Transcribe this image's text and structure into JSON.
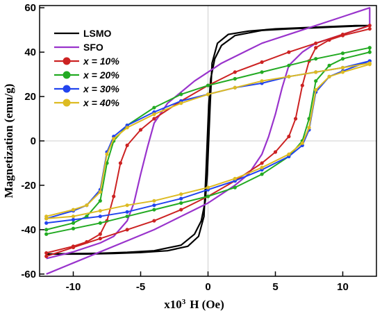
{
  "chart_data": {
    "type": "line",
    "title": "",
    "xlabel_prefix": "x10",
    "xlabel_exp": "3",
    "xlabel_main": "H (Oe)",
    "ylabel": "Magnetization (emu/g)",
    "xlim": [
      -12.5,
      12.5
    ],
    "ylim": [
      -61,
      61
    ],
    "x_ticks": [
      -10,
      -5,
      0,
      5,
      10
    ],
    "y_ticks": [
      -60,
      -40,
      -20,
      0,
      20,
      40,
      60
    ],
    "legend_position": "top-left",
    "series": [
      {
        "name": "LSMO",
        "italic": false,
        "color": "#000000",
        "marker": false,
        "x": [
          -12,
          -10,
          -8,
          -6,
          -4,
          -2,
          -1,
          -0.5,
          -0.2,
          -0.05,
          0.15,
          0.3,
          0.7,
          1.5,
          3,
          5,
          7,
          9,
          11,
          12,
          12,
          10,
          8,
          6,
          4,
          2,
          1,
          0.5,
          0.2,
          0.05,
          -0.15,
          -0.3,
          -0.7,
          -1.5,
          -3,
          -5,
          -7,
          -9,
          -11,
          -12
        ],
        "y": [
          -51,
          -50.8,
          -50.6,
          -50.2,
          -49.5,
          -47,
          -42,
          -36,
          -27,
          -15,
          15,
          35,
          44,
          48,
          49.5,
          50.5,
          51,
          51.5,
          52,
          52,
          52,
          51.5,
          51,
          50.5,
          49.8,
          47.5,
          43,
          37,
          28,
          16,
          -14,
          -34,
          -43,
          -47.5,
          -49.5,
          -50.3,
          -50.7,
          -51,
          -51,
          -51
        ]
      },
      {
        "name": "SFO",
        "italic": false,
        "color": "#9933cc",
        "marker": false,
        "x": [
          -12,
          -10,
          -8,
          -6,
          -4,
          -3,
          -2,
          -1,
          0,
          1,
          2,
          3,
          4,
          4.5,
          5,
          5.5,
          6,
          7,
          8,
          10,
          12,
          12,
          10,
          8,
          6,
          4,
          3,
          2,
          1,
          0,
          -1,
          -2,
          -3,
          -4,
          -4.5,
          -5,
          -5.5,
          -6,
          -7,
          -8,
          -10,
          -12
        ],
        "y": [
          -60,
          -55,
          -50,
          -45,
          -40,
          -37,
          -34,
          -31,
          -28,
          -24,
          -20,
          -15,
          -6,
          2,
          12,
          24,
          34,
          40,
          44,
          48,
          52,
          60,
          56,
          52,
          48,
          44,
          41,
          38,
          35,
          31,
          27,
          22,
          17,
          8,
          -3,
          -15,
          -28,
          -36,
          -43,
          -46,
          -50,
          -53
        ]
      },
      {
        "name": "x = 10%",
        "italic": true,
        "color": "#cc2222",
        "marker": true,
        "x": [
          -12,
          -10,
          -8,
          -6,
          -4,
          -2,
          0,
          2,
          4,
          5,
          6,
          6.5,
          7,
          7.5,
          8,
          9,
          10,
          12,
          12,
          10,
          8,
          6,
          4,
          2,
          0,
          -2,
          -4,
          -5,
          -6,
          -6.5,
          -7,
          -7.5,
          -8,
          -9,
          -10,
          -12
        ],
        "y": [
          -52,
          -48,
          -44,
          -40,
          -36,
          -31,
          -25,
          -18,
          -10,
          -5,
          2,
          10,
          25,
          36,
          42,
          45.5,
          47.5,
          50.5,
          52,
          48,
          44,
          40,
          35.5,
          31,
          25,
          18,
          10,
          5,
          -2,
          -10,
          -25,
          -36,
          -42,
          -45.5,
          -47.5,
          -50.5
        ]
      },
      {
        "name": "x = 20%",
        "italic": true,
        "color": "#22aa22",
        "marker": true,
        "x": [
          -12,
          -10,
          -8,
          -6,
          -4,
          -2,
          0,
          2,
          4,
          6,
          7,
          7.5,
          8,
          9,
          10,
          12,
          12,
          10,
          8,
          6,
          4,
          2,
          0,
          -2,
          -4,
          -6,
          -7,
          -7.5,
          -8,
          -9,
          -10,
          -12
        ],
        "y": [
          -42,
          -39.5,
          -37,
          -34,
          -31,
          -28,
          -25,
          -21,
          -15,
          -7,
          0,
          10,
          27,
          34,
          37,
          40,
          42,
          39.5,
          37,
          34,
          31,
          28,
          25,
          21,
          15,
          7,
          0,
          -10,
          -27,
          -34,
          -37,
          -40
        ]
      },
      {
        "name": "x = 30%",
        "italic": true,
        "color": "#2244ee",
        "marker": true,
        "x": [
          -12,
          -10,
          -8,
          -6,
          -4,
          -2,
          0,
          2,
          4,
          6,
          7,
          7.5,
          8,
          9,
          10,
          12,
          12,
          10,
          8,
          6,
          4,
          2,
          0,
          -2,
          -4,
          -6,
          -7,
          -7.5,
          -8,
          -9,
          -10,
          -12
        ],
        "y": [
          -37,
          -35.5,
          -34,
          -32,
          -29,
          -26,
          -22,
          -18,
          -13,
          -7,
          -2,
          5,
          22,
          29,
          31.5,
          36,
          36,
          33,
          31,
          29,
          26,
          24,
          21,
          18,
          13,
          7,
          2,
          -5,
          -22,
          -29,
          -31.5,
          -35
        ]
      },
      {
        "name": "x = 40%",
        "italic": true,
        "color": "#ddbb22",
        "marker": true,
        "x": [
          -12,
          -10,
          -8,
          -6,
          -4,
          -2,
          0,
          2,
          4,
          6,
          7,
          7.5,
          8,
          9,
          10,
          12,
          12,
          10,
          8,
          6,
          4,
          2,
          0,
          -2,
          -4,
          -6,
          -7,
          -7.5,
          -8,
          -9,
          -10,
          -12
        ],
        "y": [
          -35,
          -34,
          -31.5,
          -29,
          -27,
          -24,
          -21,
          -17,
          -12,
          -6,
          -1,
          6,
          23,
          29,
          31,
          34.5,
          35,
          33,
          31,
          29,
          27,
          24,
          21,
          17,
          12,
          6,
          1,
          -6,
          -23,
          -29,
          -31,
          -34
        ]
      }
    ]
  }
}
